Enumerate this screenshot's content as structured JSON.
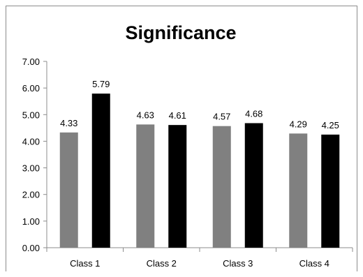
{
  "chart_data": {
    "type": "bar",
    "title": "Significance",
    "xlabel": "",
    "ylabel": "",
    "categories": [
      "Class 1",
      "Class 2",
      "Class 3",
      "Class 4"
    ],
    "ylim": [
      0,
      7
    ],
    "yticks": [
      "0.00",
      "1.00",
      "2.00",
      "3.00",
      "4.00",
      "5.00",
      "6.00",
      "7.00"
    ],
    "grid": false,
    "legend": "none",
    "series": [
      {
        "values": [
          4.33,
          4.63,
          4.57,
          4.29
        ],
        "labels": [
          "4.33",
          "4.63",
          "4.57",
          "4.29"
        ],
        "color": "#808080"
      },
      {
        "values": [
          5.79,
          4.61,
          4.68,
          4.25
        ],
        "labels": [
          "5.79",
          "4.61",
          "4.68",
          "4.25"
        ],
        "color": "#000000"
      }
    ]
  }
}
